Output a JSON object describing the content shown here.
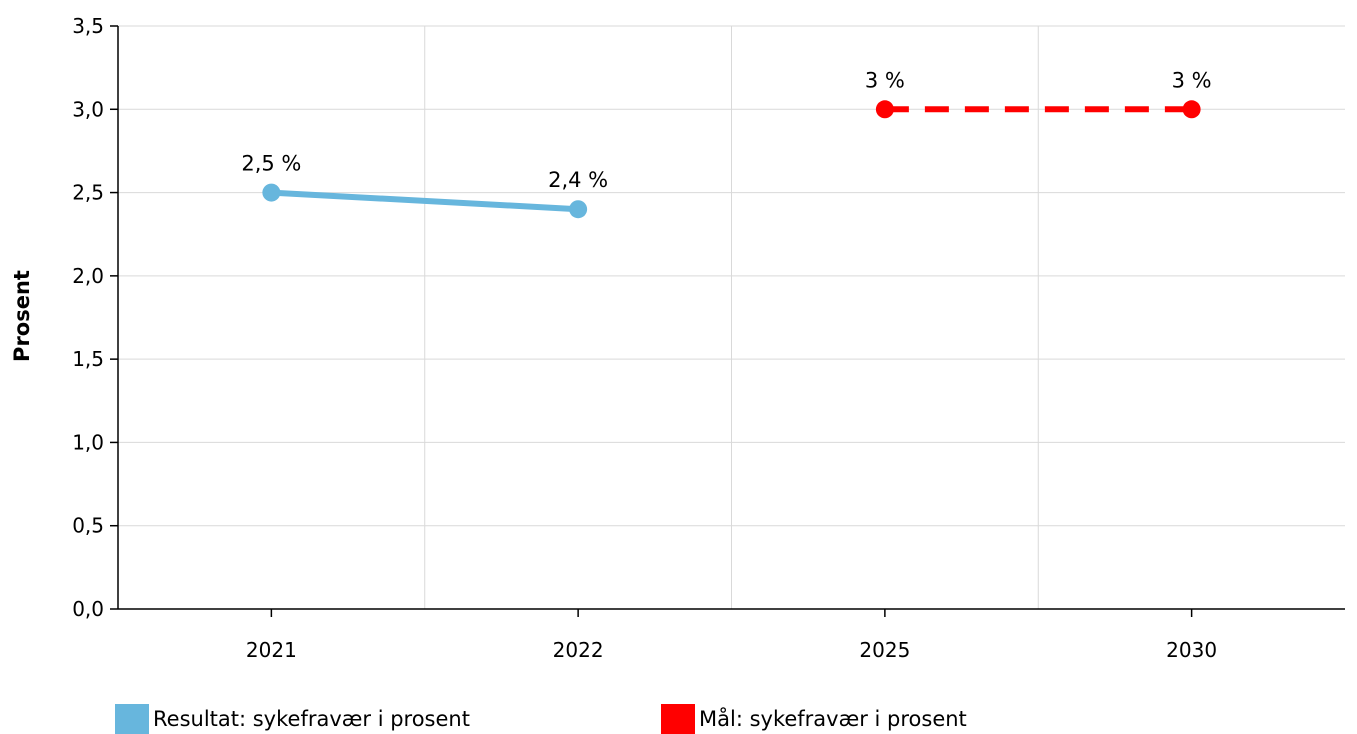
{
  "chart_data": {
    "type": "line",
    "title": "",
    "xlabel": "",
    "ylabel": "Prosent",
    "categories": [
      "2021",
      "2022",
      "2025",
      "2030"
    ],
    "ylim": [
      0,
      3.5
    ],
    "yticks": [
      "0,0",
      "0,5",
      "1,0",
      "1,5",
      "2,0",
      "2,5",
      "3,0",
      "3,5"
    ],
    "grid": true,
    "legend_position": "bottom-left",
    "series": [
      {
        "name": "Resultat: sykefravær i prosent",
        "color": "#67b6dd",
        "style": "solid",
        "points": [
          {
            "category": "2021",
            "value": 2.5,
            "label": "2,5 %"
          },
          {
            "category": "2022",
            "value": 2.4,
            "label": "2,4 %"
          }
        ]
      },
      {
        "name": "Mål: sykefravær i prosent",
        "color": "#ff0000",
        "style": "dashed",
        "points": [
          {
            "category": "2025",
            "value": 3.0,
            "label": "3 %"
          },
          {
            "category": "2030",
            "value": 3.0,
            "label": "3 %"
          }
        ]
      }
    ]
  }
}
